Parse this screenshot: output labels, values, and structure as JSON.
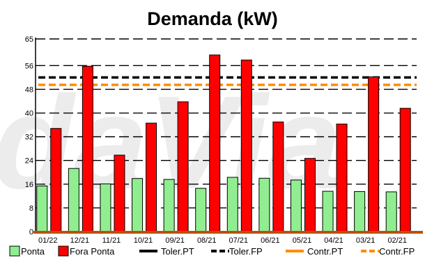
{
  "watermark": "daVia",
  "chart_data": {
    "type": "bar",
    "title": "Demanda (kW)",
    "xlabel": "",
    "ylabel": "",
    "categories": [
      "01/22",
      "12/21",
      "11/21",
      "10/21",
      "09/21",
      "08/21",
      "07/21",
      "06/21",
      "05/21",
      "04/21",
      "03/21",
      "02/21"
    ],
    "series": [
      {
        "name": "Ponta",
        "color": "#90ee90",
        "values": [
          15.4,
          21.3,
          16.1,
          17.9,
          17.6,
          14.6,
          18.3,
          18.0,
          17.4,
          13.6,
          13.5,
          13.4
        ]
      },
      {
        "name": "Fora Ponta",
        "color": "#ff0000",
        "values": [
          34.8,
          55.8,
          25.8,
          36.6,
          43.8,
          59.6,
          57.9,
          37.0,
          24.7,
          36.3,
          52.2,
          41.6
        ]
      }
    ],
    "reference_lines": [
      {
        "name": "Toler.PT",
        "value": 52.0,
        "color": "#000000",
        "style": "dashed"
      },
      {
        "name": "Toler.FP",
        "value": 52.0,
        "color": "#000000",
        "style": "dashed"
      },
      {
        "name": "Contr.PT",
        "value": 49.5,
        "color": "#ff8c00",
        "style": "dashed"
      },
      {
        "name": "Contr.FP",
        "value": 49.5,
        "color": "#ff8c00",
        "style": "dashed"
      }
    ],
    "yticks": [
      0,
      8,
      16,
      24,
      32,
      40,
      48,
      56,
      65
    ],
    "ylim": [
      0,
      65
    ],
    "grid": true,
    "legend": "bottom",
    "legend_items": [
      {
        "label": "Ponta",
        "kind": "box",
        "color": "#90ee90"
      },
      {
        "label": "Fora Ponta",
        "kind": "box",
        "color": "#ff0000"
      },
      {
        "label": "Toler.PT",
        "kind": "line",
        "color": "#000000"
      },
      {
        "label": "Toler.FP",
        "kind": "dash",
        "color": "#000000"
      },
      {
        "label": "Contr.PT",
        "kind": "line",
        "color": "#ff8c00"
      },
      {
        "label": "Contr.FP",
        "kind": "dash",
        "color": "#ff8c00"
      }
    ]
  }
}
